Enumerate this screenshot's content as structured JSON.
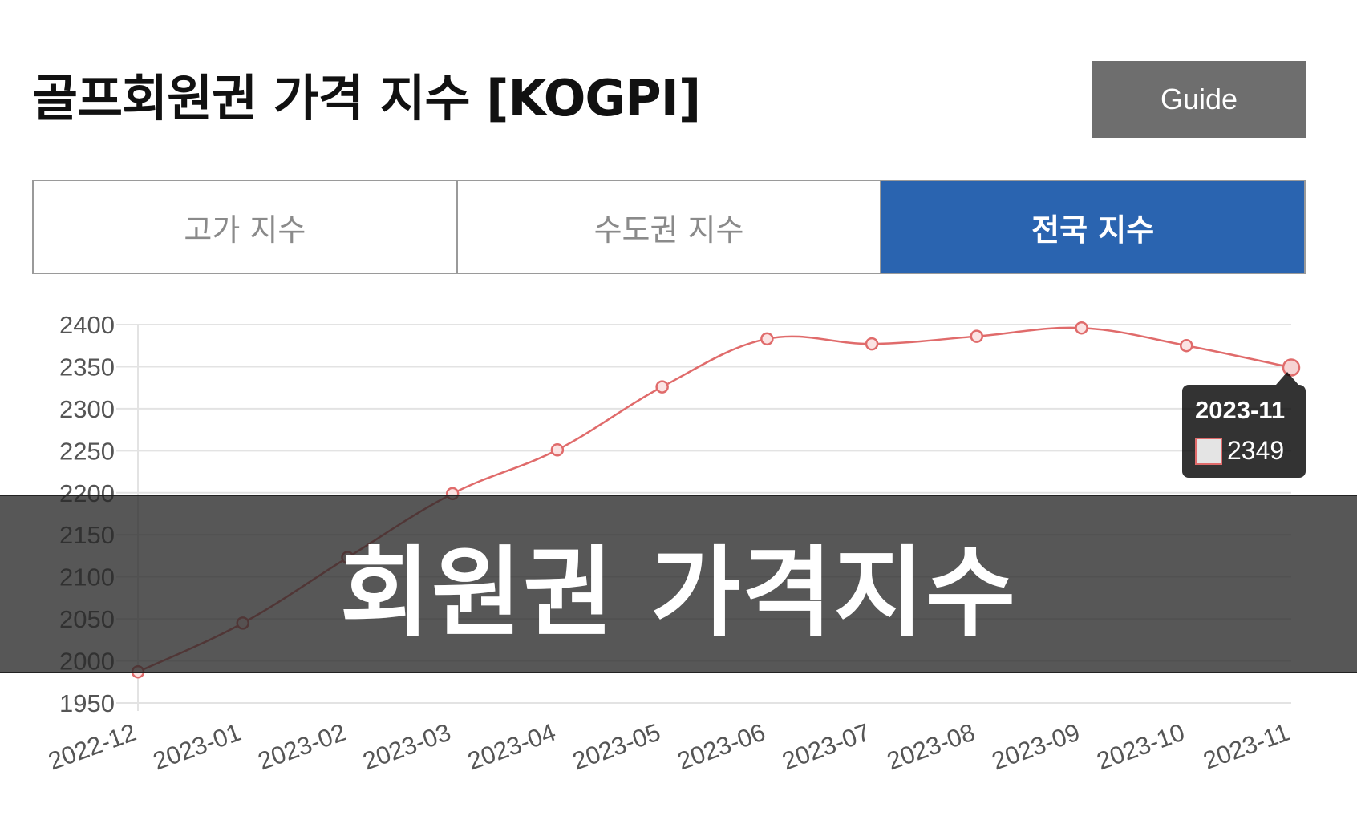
{
  "header": {
    "title": "골프회원권 가격 지수 [KOGPI]",
    "guide_label": "Guide"
  },
  "tabs": [
    {
      "label": "고가 지수",
      "active": false
    },
    {
      "label": "수도권 지수",
      "active": false
    },
    {
      "label": "전국 지수",
      "active": true
    }
  ],
  "chart_data": {
    "type": "line",
    "categories": [
      "2022-12",
      "2023-01",
      "2023-02",
      "2023-03",
      "2023-04",
      "2023-05",
      "2023-06",
      "2023-07",
      "2023-08",
      "2023-09",
      "2023-10",
      "2023-11"
    ],
    "values": [
      1987,
      2045,
      2123,
      2199,
      2251,
      2326,
      2383,
      2377,
      2386,
      2396,
      2375,
      2349
    ],
    "y_ticks": [
      "2400",
      "2350",
      "2300",
      "2250",
      "2200",
      "2150",
      "2100",
      "2050",
      "2000",
      "1950"
    ],
    "ylim": [
      1950,
      2400
    ],
    "grid": true,
    "line_color": "#e06b6b"
  },
  "tooltip": {
    "title": "2023-11",
    "value": "2349"
  },
  "banner": {
    "text": "회원권 가격지수"
  }
}
